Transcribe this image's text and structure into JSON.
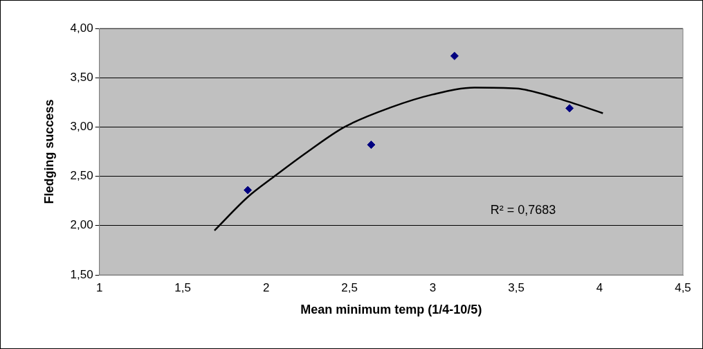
{
  "chart_data": {
    "type": "scatter",
    "xlabel": "Mean minimum temp (1/4-10/5)",
    "ylabel": "Fledging success",
    "xlim": [
      1,
      4.5
    ],
    "ylim": [
      1.5,
      4
    ],
    "xticks": [
      1,
      {
        "value": 1.5,
        "label": "1,5"
      },
      2,
      {
        "value": 2.5,
        "label": "2,5"
      },
      3,
      {
        "value": 3.5,
        "label": "3,5"
      },
      4,
      {
        "value": 4.5,
        "label": "4,5"
      }
    ],
    "yticks": [
      {
        "value": 1.5,
        "label": "1,50"
      },
      {
        "value": 2,
        "label": "2,00"
      },
      {
        "value": 2.5,
        "label": "2,50"
      },
      {
        "value": 3,
        "label": "3,00"
      },
      {
        "value": 3.5,
        "label": "3,50"
      },
      {
        "value": 4,
        "label": "4,00"
      }
    ],
    "grid": "y",
    "legend": false,
    "series": [
      {
        "color": "#000080",
        "marker": "diamond",
        "x": [
          1.89,
          2.63,
          3.13,
          3.82
        ],
        "values": [
          2.36,
          2.82,
          3.72,
          3.19
        ]
      },
      {
        "type": "line",
        "color": "#000000",
        "marker": "none",
        "x": [
          1.69,
          1.89,
          2.05,
          2.25,
          2.47,
          2.75,
          3.0,
          3.25,
          3.5,
          3.75,
          4.02
        ],
        "values": [
          1.95,
          2.29,
          2.5,
          2.75,
          3.0,
          3.2,
          3.33,
          3.4,
          3.39,
          3.29,
          3.14
        ]
      }
    ],
    "annotations": [
      "R² = 0,7683"
    ]
  }
}
